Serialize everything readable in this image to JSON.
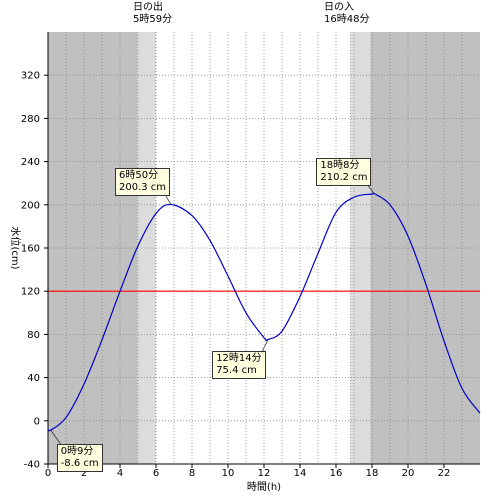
{
  "sun": {
    "rise": {
      "title": "日の出",
      "time": "5時59分",
      "x_value": 5.983
    },
    "set": {
      "title": "日の入",
      "time": "16時48分",
      "x_value": 16.8
    }
  },
  "chart_data": {
    "type": "line",
    "title": "",
    "xlabel": "時間(h)",
    "ylabel": "水位(cm)",
    "xlim": [
      0,
      24
    ],
    "ylim": [
      -40,
      360
    ],
    "x_ticks": [
      0,
      2,
      4,
      6,
      8,
      10,
      12,
      14,
      16,
      18,
      20,
      22
    ],
    "y_ticks": [
      -40,
      0,
      40,
      80,
      120,
      160,
      200,
      240,
      280,
      320
    ],
    "reference_line": {
      "y": 120,
      "color": "#ff0000"
    },
    "series": [
      {
        "color": "#0000cc",
        "x": [
          0,
          0.15,
          1,
          2,
          3,
          4,
          5,
          6,
          6.833,
          8,
          9,
          10,
          11,
          12,
          12.233,
          13,
          14,
          15,
          16,
          17,
          18,
          18.133,
          19,
          20,
          21,
          22,
          23,
          24
        ],
        "y": [
          -7.5,
          -8.6,
          3,
          34,
          75,
          120,
          162,
          192,
          200.3,
          190,
          167,
          134,
          100,
          77,
          75.4,
          83,
          115,
          155,
          193,
          207,
          210,
          210.2,
          200,
          171,
          126,
          74,
          30,
          7
        ]
      }
    ],
    "extrema": [
      {
        "x": 0.15,
        "y": -8.6,
        "time": "0時9分",
        "value": "-8.6 cm"
      },
      {
        "x": 6.833,
        "y": 200.3,
        "time": "6時50分",
        "value": "200.3 cm"
      },
      {
        "x": 12.233,
        "y": 75.4,
        "time": "12時14分",
        "value": "75.4 cm"
      },
      {
        "x": 18.133,
        "y": 210.2,
        "time": "18時8分",
        "value": "210.2 cm"
      }
    ],
    "grid": true,
    "colors": {
      "night": "#c0c0c0",
      "twilight": "#dcdcdc",
      "day": "#ffffff",
      "grid": "#888888"
    }
  }
}
